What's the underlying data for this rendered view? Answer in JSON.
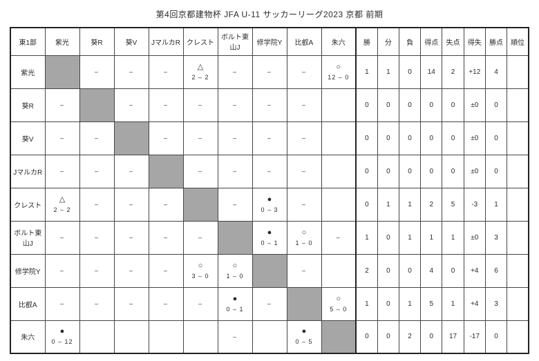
{
  "title": "第4回京都建物杯 JFA U-11 サッカーリーグ2023 京都 前期",
  "group_header": "東1部",
  "teams": [
    "紫光",
    "葵R",
    "葵V",
    "JマルカR",
    "クレスト",
    "ボルト東山J",
    "修学院Y",
    "比叡A",
    "朱六"
  ],
  "stats_headers": [
    "勝",
    "分",
    "負",
    "得点",
    "失点",
    "得失",
    "勝点",
    "順位"
  ],
  "results": {
    "紫光": {
      "葵R": {
        "mark": "",
        "top": "",
        "bottom": "–"
      },
      "葵V": {
        "mark": "",
        "top": "",
        "bottom": "–"
      },
      "JマルカR": {
        "mark": "",
        "top": "",
        "bottom": "–"
      },
      "クレスト": {
        "mark": "draw",
        "top": "△",
        "bottom": "2 – 2"
      },
      "ボルト東山J": {
        "mark": "",
        "top": "",
        "bottom": "–"
      },
      "修学院Y": {
        "mark": "",
        "top": "",
        "bottom": "–"
      },
      "比叡A": {
        "mark": "",
        "top": "",
        "bottom": "–"
      },
      "朱六": {
        "mark": "win",
        "top": "○",
        "bottom": "12 – 0"
      }
    },
    "葵R": {
      "紫光": {
        "mark": "",
        "top": "",
        "bottom": "–"
      },
      "葵V": {
        "mark": "",
        "top": "",
        "bottom": "–"
      },
      "JマルカR": {
        "mark": "",
        "top": "",
        "bottom": "–"
      },
      "クレスト": {
        "mark": "",
        "top": "",
        "bottom": "–"
      },
      "ボルト東山J": {
        "mark": "",
        "top": "",
        "bottom": "–"
      },
      "修学院Y": {
        "mark": "",
        "top": "",
        "bottom": "–"
      },
      "比叡A": {
        "mark": "",
        "top": "",
        "bottom": "–"
      },
      "朱六": {
        "mark": "",
        "top": "",
        "bottom": ""
      }
    },
    "葵V": {
      "紫光": {
        "mark": "",
        "top": "",
        "bottom": "–"
      },
      "葵R": {
        "mark": "",
        "top": "",
        "bottom": "–"
      },
      "JマルカR": {
        "mark": "",
        "top": "",
        "bottom": "–"
      },
      "クレスト": {
        "mark": "",
        "top": "",
        "bottom": "–"
      },
      "ボルト東山J": {
        "mark": "",
        "top": "",
        "bottom": "–"
      },
      "修学院Y": {
        "mark": "",
        "top": "",
        "bottom": "–"
      },
      "比叡A": {
        "mark": "",
        "top": "",
        "bottom": "–"
      },
      "朱六": {
        "mark": "",
        "top": "",
        "bottom": ""
      }
    },
    "JマルカR": {
      "紫光": {
        "mark": "",
        "top": "",
        "bottom": "–"
      },
      "葵R": {
        "mark": "",
        "top": "",
        "bottom": "–"
      },
      "葵V": {
        "mark": "",
        "top": "",
        "bottom": "–"
      },
      "クレスト": {
        "mark": "",
        "top": "",
        "bottom": "–"
      },
      "ボルト東山J": {
        "mark": "",
        "top": "",
        "bottom": "–"
      },
      "修学院Y": {
        "mark": "",
        "top": "",
        "bottom": "–"
      },
      "比叡A": {
        "mark": "",
        "top": "",
        "bottom": "–"
      },
      "朱六": {
        "mark": "",
        "top": "",
        "bottom": ""
      }
    },
    "クレスト": {
      "紫光": {
        "mark": "draw",
        "top": "△",
        "bottom": "2 – 2"
      },
      "葵R": {
        "mark": "",
        "top": "",
        "bottom": "–"
      },
      "葵V": {
        "mark": "",
        "top": "",
        "bottom": "–"
      },
      "JマルカR": {
        "mark": "",
        "top": "",
        "bottom": "–"
      },
      "ボルト東山J": {
        "mark": "",
        "top": "",
        "bottom": "–"
      },
      "修学院Y": {
        "mark": "loss",
        "top": "●",
        "bottom": "0 – 3"
      },
      "比叡A": {
        "mark": "",
        "top": "",
        "bottom": "–"
      },
      "朱六": {
        "mark": "",
        "top": "",
        "bottom": ""
      }
    },
    "ボルト東山J": {
      "紫光": {
        "mark": "",
        "top": "",
        "bottom": "–"
      },
      "葵R": {
        "mark": "",
        "top": "",
        "bottom": "–"
      },
      "葵V": {
        "mark": "",
        "top": "",
        "bottom": "–"
      },
      "JマルカR": {
        "mark": "",
        "top": "",
        "bottom": "–"
      },
      "クレスト": {
        "mark": "",
        "top": "",
        "bottom": "–"
      },
      "修学院Y": {
        "mark": "loss",
        "top": "●",
        "bottom": "0 – 1"
      },
      "比叡A": {
        "mark": "win",
        "top": "○",
        "bottom": "1 – 0"
      },
      "朱六": {
        "mark": "",
        "top": "",
        "bottom": "–"
      }
    },
    "修学院Y": {
      "紫光": {
        "mark": "",
        "top": "",
        "bottom": "–"
      },
      "葵R": {
        "mark": "",
        "top": "",
        "bottom": "–"
      },
      "葵V": {
        "mark": "",
        "top": "",
        "bottom": "–"
      },
      "JマルカR": {
        "mark": "",
        "top": "",
        "bottom": "–"
      },
      "クレスト": {
        "mark": "win",
        "top": "○",
        "bottom": "3 – 0"
      },
      "ボルト東山J": {
        "mark": "win",
        "top": "○",
        "bottom": "1 – 0"
      },
      "比叡A": {
        "mark": "",
        "top": "",
        "bottom": "–"
      },
      "朱六": {
        "mark": "",
        "top": "",
        "bottom": ""
      }
    },
    "比叡A": {
      "紫光": {
        "mark": "",
        "top": "",
        "bottom": "–"
      },
      "葵R": {
        "mark": "",
        "top": "",
        "bottom": "–"
      },
      "葵V": {
        "mark": "",
        "top": "",
        "bottom": "–"
      },
      "JマルカR": {
        "mark": "",
        "top": "",
        "bottom": "–"
      },
      "クレスト": {
        "mark": "",
        "top": "",
        "bottom": "–"
      },
      "ボルト東山J": {
        "mark": "loss",
        "top": "●",
        "bottom": "0 – 1"
      },
      "修学院Y": {
        "mark": "",
        "top": "",
        "bottom": "–"
      },
      "朱六": {
        "mark": "win",
        "top": "○",
        "bottom": "5 – 0"
      }
    },
    "朱六": {
      "紫光": {
        "mark": "loss",
        "top": "●",
        "bottom": "0 – 12"
      },
      "葵R": {
        "mark": "",
        "top": "",
        "bottom": ""
      },
      "葵V": {
        "mark": "",
        "top": "",
        "bottom": ""
      },
      "JマルカR": {
        "mark": "",
        "top": "",
        "bottom": ""
      },
      "クレスト": {
        "mark": "",
        "top": "",
        "bottom": ""
      },
      "ボルト東山J": {
        "mark": "",
        "top": "",
        "bottom": "–"
      },
      "修学院Y": {
        "mark": "",
        "top": "",
        "bottom": ""
      },
      "比叡A": {
        "mark": "loss",
        "top": "●",
        "bottom": "0 – 5"
      }
    }
  },
  "stats": {
    "紫光": {
      "w": "1",
      "d": "1",
      "l": "0",
      "gf": "14",
      "ga": "2",
      "gd": "+12",
      "pts": "4",
      "rank": ""
    },
    "葵R": {
      "w": "0",
      "d": "0",
      "l": "0",
      "gf": "0",
      "ga": "0",
      "gd": "±0",
      "pts": "0",
      "rank": ""
    },
    "葵V": {
      "w": "0",
      "d": "0",
      "l": "0",
      "gf": "0",
      "ga": "0",
      "gd": "±0",
      "pts": "0",
      "rank": ""
    },
    "JマルカR": {
      "w": "0",
      "d": "0",
      "l": "0",
      "gf": "0",
      "ga": "0",
      "gd": "±0",
      "pts": "0",
      "rank": ""
    },
    "クレスト": {
      "w": "0",
      "d": "1",
      "l": "1",
      "gf": "2",
      "ga": "5",
      "gd": "-3",
      "pts": "1",
      "rank": ""
    },
    "ボルト東山J": {
      "w": "1",
      "d": "0",
      "l": "1",
      "gf": "1",
      "ga": "1",
      "gd": "±0",
      "pts": "3",
      "rank": ""
    },
    "修学院Y": {
      "w": "2",
      "d": "0",
      "l": "0",
      "gf": "4",
      "ga": "0",
      "gd": "+4",
      "pts": "6",
      "rank": ""
    },
    "比叡A": {
      "w": "1",
      "d": "0",
      "l": "1",
      "gf": "5",
      "ga": "1",
      "gd": "+4",
      "pts": "3",
      "rank": ""
    },
    "朱六": {
      "w": "0",
      "d": "0",
      "l": "2",
      "gf": "0",
      "ga": "17",
      "gd": "-17",
      "pts": "0",
      "rank": ""
    }
  },
  "colors": {
    "diagonal_bg": "#a6a6a6",
    "border": "#444444",
    "thick_border": "#222222",
    "text": "#2a2a2a",
    "bg": "#ffffff"
  }
}
